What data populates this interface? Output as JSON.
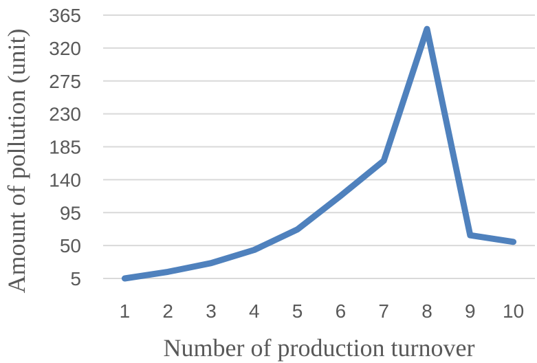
{
  "chart_data": {
    "type": "line",
    "title": "",
    "xlabel": "Number of production turnover",
    "ylabel": "Amount of pollution (unit)",
    "categories": [
      "1",
      "2",
      "3",
      "4",
      "5",
      "6",
      "7",
      "8",
      "9",
      "10"
    ],
    "series": [
      {
        "values": [
          5,
          14,
          26,
          44,
          72,
          118,
          166,
          346,
          64,
          55
        ],
        "color": "#4f81bd"
      }
    ],
    "yticks": [
      5,
      50,
      95,
      140,
      185,
      230,
      275,
      320,
      365
    ],
    "ylim": [
      5,
      365
    ],
    "grid": true,
    "legend": "none"
  }
}
